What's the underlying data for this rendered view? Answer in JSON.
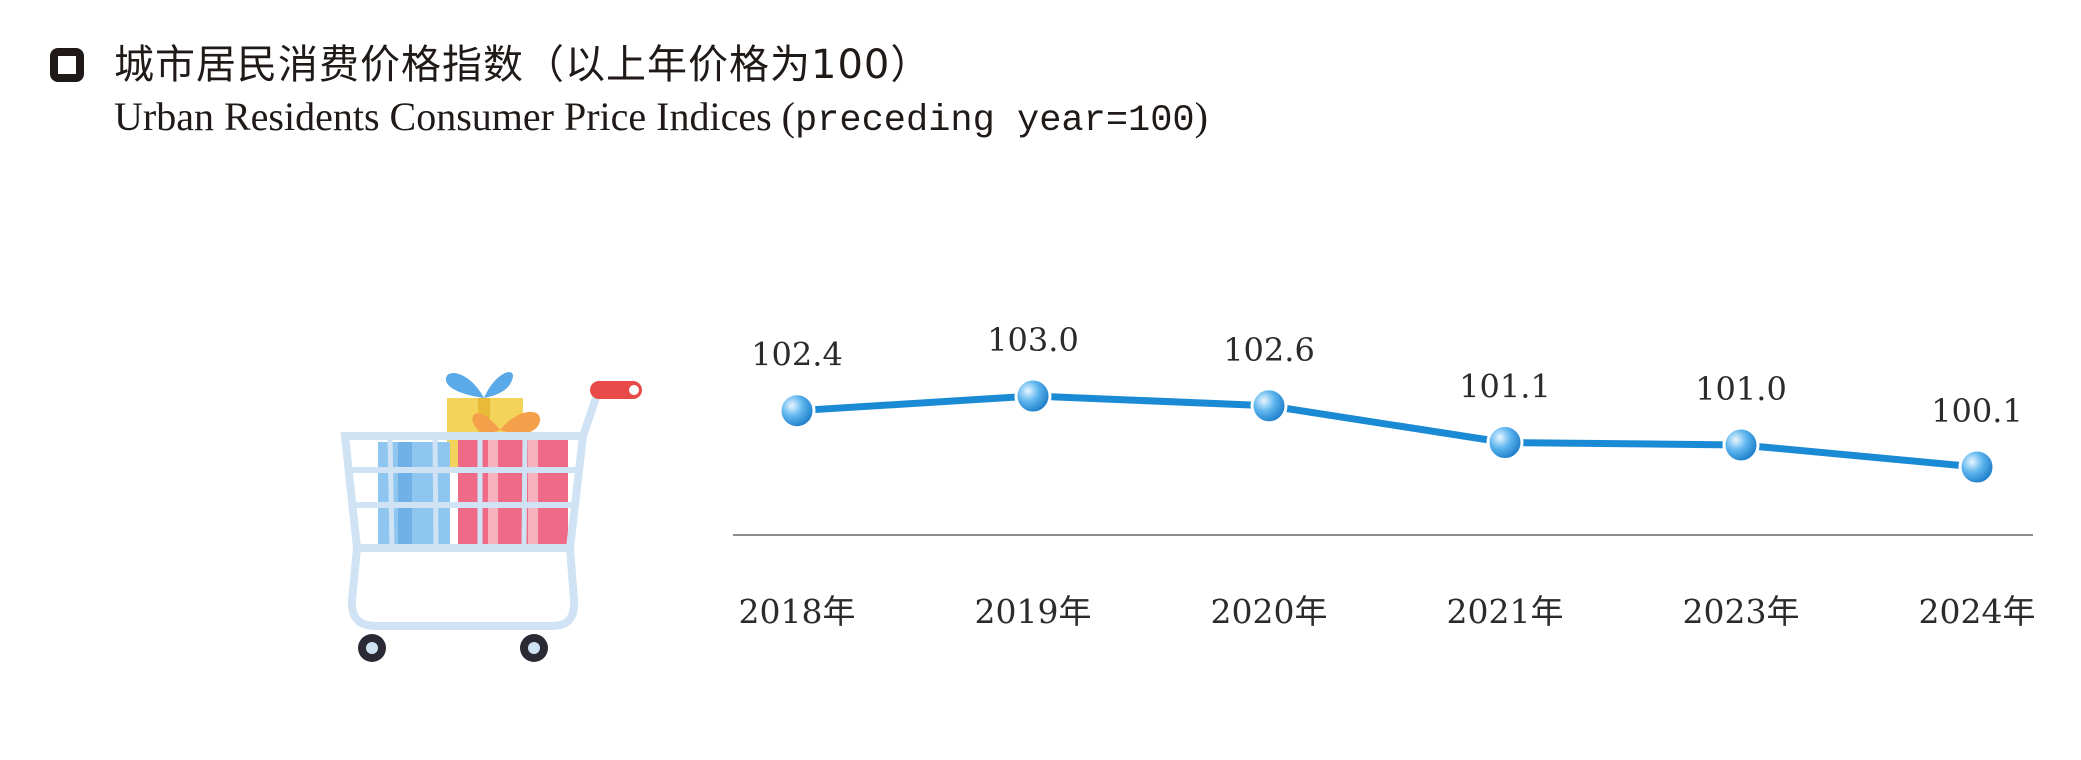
{
  "header": {
    "title_cn": "城市居民消费价格指数（以上年价格为100）",
    "title_en_main": "Urban Residents Consumer Price Indices (",
    "title_en_mono": "preceding year=100",
    "title_en_end": ")"
  },
  "chart_data": {
    "type": "line",
    "title": "城市居民消费价格指数（以上年价格为100）",
    "subtitle": "Urban Residents Consumer Price Indices (preceding year=100)",
    "categories": [
      "2018年",
      "2019年",
      "2020年",
      "2021年",
      "2023年",
      "2024年"
    ],
    "values": [
      102.4,
      103.0,
      102.6,
      101.1,
      101.0,
      100.1
    ],
    "data_labels": [
      "102.4",
      "103.0",
      "102.6",
      "101.1",
      "101.0",
      "100.1"
    ],
    "xlabel": "",
    "ylabel": "",
    "grid": false,
    "legend": "none",
    "colors": {
      "line": "#1a8ad4",
      "marker": "#3aa0e6",
      "axis": "#8c8c8c",
      "text": "#2b2b2b"
    }
  },
  "illustration": {
    "icon": "shopping-cart-icon"
  }
}
